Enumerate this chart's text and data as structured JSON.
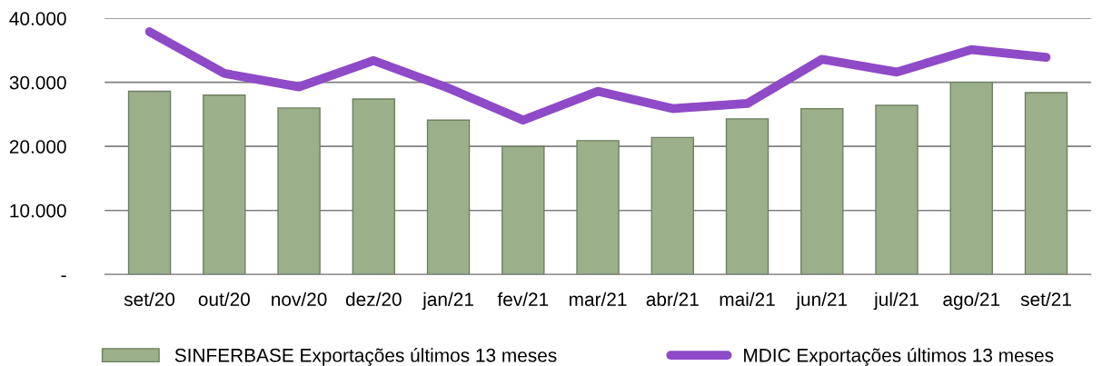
{
  "chart_data": {
    "type": "bar",
    "categories": [
      "set/20",
      "out/20",
      "nov/20",
      "dez/20",
      "jan/21",
      "fev/21",
      "mar/21",
      "abr/21",
      "mai/21",
      "jun/21",
      "jul/21",
      "ago/21",
      "set/21"
    ],
    "series": [
      {
        "name": "SINFERBASE Exportações últimos 13 meses",
        "color": "#9bb08a",
        "values": [
          28600,
          28000,
          26000,
          27400,
          24100,
          20000,
          20900,
          21400,
          24300,
          25900,
          26400,
          30000,
          28400
        ]
      },
      {
        "name": "MDIC Exportações últimos 13 meses",
        "type": "line",
        "color": "#8e4ac7",
        "values": [
          37900,
          31400,
          29300,
          33400,
          29100,
          24100,
          28600,
          25900,
          26700,
          33600,
          31600,
          35100,
          33900
        ]
      }
    ],
    "ylim": [
      0,
      40000
    ],
    "yticks": [
      {
        "value": 0,
        "label": "-"
      },
      {
        "value": 10000,
        "label": "10.000"
      },
      {
        "value": 20000,
        "label": "20.000"
      },
      {
        "value": 30000,
        "label": "30.000"
      },
      {
        "value": 40000,
        "label": "40.000"
      }
    ],
    "grid": "y",
    "legend": "bottom",
    "marker": "none",
    "line_style": "solid"
  }
}
